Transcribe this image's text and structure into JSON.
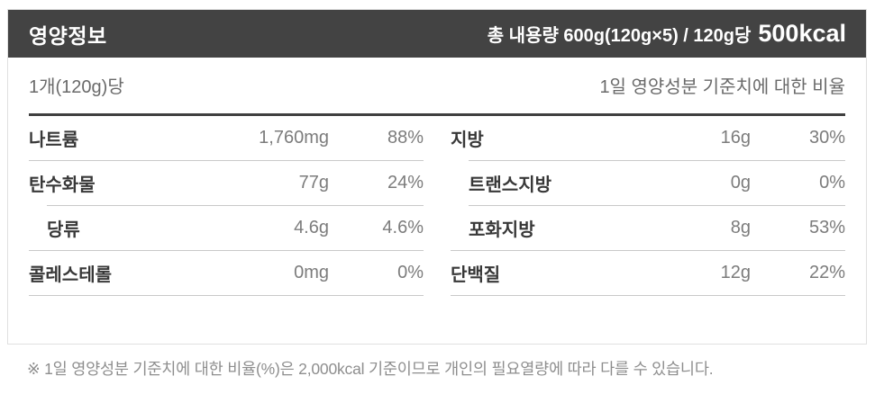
{
  "label": {
    "title": "영양정보",
    "serving_summary": {
      "prefix": "총 내용량 600g(120g×5) / 120g당",
      "calories": "500kcal"
    },
    "per_unit": "1개(120g)당",
    "daily_value_note": "1일 영양성분 기준치에 대한 비율",
    "table": {
      "left": [
        {
          "label": "나트륨",
          "amount": "1,760mg",
          "percent": "88%"
        },
        {
          "label": "탄수화물",
          "amount": "77g",
          "percent": "24%"
        },
        {
          "label": "당류",
          "amount": "4.6g",
          "percent": "4.6%"
        },
        {
          "label": "콜레스테롤",
          "amount": "0mg",
          "percent": "0%"
        }
      ],
      "right": [
        {
          "label": "지방",
          "amount": "16g",
          "percent": "30%"
        },
        {
          "label": "트랜스지방",
          "amount": "0g",
          "percent": "0%"
        },
        {
          "label": "포화지방",
          "amount": "8g",
          "percent": "53%"
        },
        {
          "label": "단백질",
          "amount": "12g",
          "percent": "22%"
        }
      ]
    },
    "footnote": "※ 1일 영양성분 기준치에 대한 비율(%)은 2,000kcal 기준이므로 개인의 필요열량에 따라 다를 수 있습니다.",
    "colors": {
      "header_bg": "#434343",
      "header_text": "#ffffff",
      "label_text": "#383838",
      "value_text": "#7c7c7c",
      "separator": "#c9c9c9",
      "thick_rule": "#3f3f3f",
      "box_border": "#e0e0e0",
      "footnote_text": "#8e8e8e"
    }
  }
}
